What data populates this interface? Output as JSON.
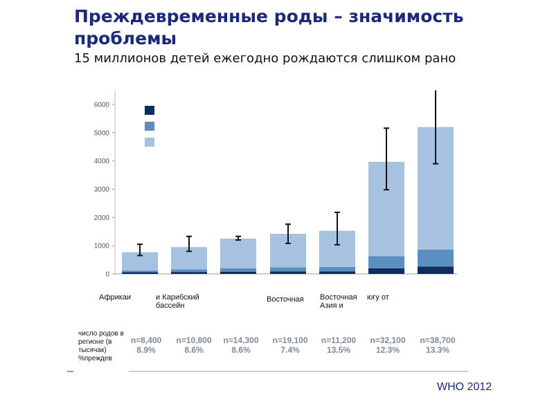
{
  "header": {
    "title": "Преждевременные роды – значимость проблемы",
    "subtitle": "15 миллионов детей ежегодно рождаются слишком рано"
  },
  "colors": {
    "dark": "#0e2d5c",
    "medium": "#5b8fc0",
    "light": "#a6c2e0",
    "axis": "#666666",
    "title": "#1a2a78"
  },
  "chart_data": {
    "type": "bar",
    "stacked": true,
    "ylim": [
      0,
      6000
    ],
    "yticks": [
      "0",
      "1000",
      "2000",
      "3000",
      "4000",
      "5000",
      "6000"
    ],
    "categories": [
      "Африкаи",
      "и Карибский бассейн",
      "",
      "Восточная",
      "Восточная Азия и",
      "югу от",
      ""
    ],
    "series": [
      {
        "color": "#0e2d5c",
        "values": [
          60,
          70,
          80,
          90,
          90,
          200,
          260
        ]
      },
      {
        "color": "#5b8fc0",
        "values": [
          60,
          90,
          120,
          140,
          160,
          430,
          600
        ]
      },
      {
        "color": "#a6c2e0",
        "values": [
          650,
          790,
          1050,
          1190,
          1280,
          3340,
          4340
        ]
      }
    ],
    "error_bars": [
      {
        "low": 650,
        "high": 1050
      },
      {
        "low": 800,
        "high": 1330
      },
      {
        "low": 1200,
        "high": 1330
      },
      {
        "low": 1080,
        "high": 1760
      },
      {
        "low": 1030,
        "high": 2180
      },
      {
        "low": 2980,
        "high": 5160
      },
      {
        "low": 3900,
        "high": 6500
      }
    ],
    "n_values": [
      "n=8,400",
      "n=10,800",
      "n=14,300",
      "n=19,100",
      "n=11,200",
      "n=32,100",
      "n=38,700"
    ],
    "pct_values": [
      "8.9%",
      "8.6%",
      "8.6%",
      "7.4%",
      "13.5%",
      "12.3%",
      "13.3%"
    ],
    "row_label": "число родов в регионе (в тысячак) %преждев",
    "legend": {
      "placement": "top-left",
      "entries": 3
    }
  },
  "source": "WHO 2012"
}
